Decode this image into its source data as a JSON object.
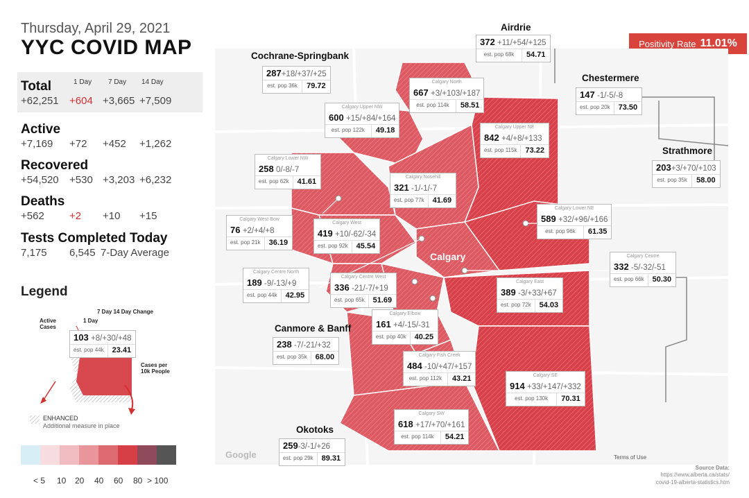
{
  "header": {
    "date": "Thursday, April 29, 2021",
    "title": "YYC COVID MAP"
  },
  "positivity": {
    "label": "Positivity Rate",
    "value": "11.01%"
  },
  "columns": {
    "d1": "1 Day",
    "d7": "7 Day",
    "d14": "14 Day"
  },
  "stats": {
    "total": {
      "label": "Total",
      "value": "+62,251",
      "d1": "+604",
      "d7": "+3,665",
      "d14": "+7,509"
    },
    "active": {
      "label": "Active",
      "value": "+7,169",
      "d1": "+72",
      "d7": "+452",
      "d14": "+1,262"
    },
    "recovered": {
      "label": "Recovered",
      "value": "+54,520",
      "d1": "+530",
      "d7": "+3,203",
      "d14": "+6,232"
    },
    "deaths": {
      "label": "Deaths",
      "value": "+562",
      "d1": "+2",
      "d7": "+10",
      "d14": "+15"
    },
    "tests": {
      "label": "Tests Completed Today",
      "value": "7,175",
      "avg": "6,545",
      "avg_label": "7-Day Average"
    }
  },
  "legend": {
    "title": "Legend",
    "lbl_7_14": "7 Day  14 Day Change",
    "lbl_1day": "1 Day",
    "lbl_active": "Active Cases",
    "lbl_per10k": "Cases per 10k People",
    "sample_cases": "103",
    "sample_chg": "+8/+30/+48",
    "sample_pop": "est. pop 44k",
    "sample_rate": "23.41",
    "enhanced": "ENHANCED",
    "enhanced_sub": "Additional measure in place",
    "scale_labels": [
      "< 5",
      "10",
      "20",
      "40",
      "60",
      "80",
      "> 100"
    ],
    "scale_colors": [
      "#d7eef7",
      "#f8dde0",
      "#f1bcc0",
      "#e8969b",
      "#dd6a70",
      "#d63f46",
      "#8e4a5b",
      "#555555"
    ]
  },
  "regions": {
    "airdrie": {
      "name": "Airdrie",
      "cases": "372",
      "chg": "+11/+54/+125",
      "pop": "est. pop 68k",
      "rate": "54.71"
    },
    "cochrane": {
      "name": "Cochrane-Springbank",
      "cases": "287",
      "chg": "+18/+37/+25",
      "pop": "est. pop 36k",
      "rate": "79.72"
    },
    "chestermere": {
      "name": "Chestermere",
      "cases": "147",
      "chg": "-1/-5/-8",
      "pop": "est. pop 20k",
      "rate": "73.50"
    },
    "strathmore": {
      "name": "Strathmore",
      "cases": "203",
      "chg": "+3/+70/+103",
      "pop": "est. pop 35k",
      "rate": "58.00"
    },
    "canmore": {
      "name": "Canmore & Banff",
      "cases": "238",
      "chg": "-7/-21/+32",
      "pop": "est. pop 35k",
      "rate": "68.00"
    },
    "okotoks": {
      "name": "Okotoks",
      "cases": "259",
      "chg": "-3/-1/+26",
      "pop": "est. pop 29k",
      "rate": "89.31"
    },
    "north": {
      "name": "Calgary North",
      "cases": "667",
      "chg": "+3/+103/+187",
      "pop": "est. pop 114k",
      "rate": "58.51"
    },
    "uppernw": {
      "name": "Calgary Upper NW",
      "cases": "600",
      "chg": "+15/+84/+164",
      "pop": "est. pop 122k",
      "rate": "49.18"
    },
    "upperne": {
      "name": "Calgary Upper NE",
      "cases": "842",
      "chg": "+4/+8/+133",
      "pop": "est. pop 115k",
      "rate": "73.22"
    },
    "lowernw": {
      "name": "Calgary Lower NW",
      "cases": "258",
      "chg": "0/-8/-7",
      "pop": "est. pop 62k",
      "rate": "41.61"
    },
    "nosehill": {
      "name": "Calgary Nosehill",
      "cases": "321",
      "chg": "-1/-1/-7",
      "pop": "est. pop 77k",
      "rate": "41.69"
    },
    "lowerne": {
      "name": "Calgary Lower NE",
      "cases": "589",
      "chg": "+32/+96/+166",
      "pop": "est. pop 96k",
      "rate": "61.35"
    },
    "westbow": {
      "name": "Calgary West Bow",
      "cases": "76",
      "chg": "+2/+4/+8",
      "pop": "est. pop 21k",
      "rate": "36.19"
    },
    "west": {
      "name": "Calgary West",
      "cases": "419",
      "chg": "+10/-62/-34",
      "pop": "est. pop 92k",
      "rate": "45.54"
    },
    "centre": {
      "name": "Calgary Centre",
      "cases": "332",
      "chg": "-5/-32/-51",
      "pop": "est. pop 66k",
      "rate": "50.30"
    },
    "centrenorth": {
      "name": "Calgary Centre North",
      "cases": "189",
      "chg": "-9/-13/+9",
      "pop": "est. pop 44k",
      "rate": "42.95"
    },
    "centrewest": {
      "name": "Calgary Centre West",
      "cases": "336",
      "chg": "-21/-7/+19",
      "pop": "est. pop 65k",
      "rate": "51.69"
    },
    "east": {
      "name": "Calgary East",
      "cases": "389",
      "chg": "-3/+33/+67",
      "pop": "est. pop 72k",
      "rate": "54.03"
    },
    "elbow": {
      "name": "Calgary Elbow",
      "cases": "161",
      "chg": "+4/-15/-31",
      "pop": "est. pop 40k",
      "rate": "40.25"
    },
    "fishcreek": {
      "name": "Calgary Fish Creek",
      "cases": "484",
      "chg": "-10/+47/+157",
      "pop": "est. pop 112k",
      "rate": "43.21"
    },
    "se": {
      "name": "Calgary SE",
      "cases": "914",
      "chg": "+33/+147/+332",
      "pop": "est. pop 130k",
      "rate": "70.31"
    },
    "sw": {
      "name": "Calgary SW",
      "cases": "618",
      "chg": "+17/+70/+161",
      "pop": "est. pop 114k",
      "rate": "54.21"
    }
  },
  "map_labels": {
    "calgary": "Calgary",
    "google": "Google",
    "terms": "Terms of Use"
  },
  "source": {
    "label": "Source Data:",
    "url1": "https://www.alberta.ca/stats/",
    "url2": "covid-19-alberta-statistics.htm"
  }
}
